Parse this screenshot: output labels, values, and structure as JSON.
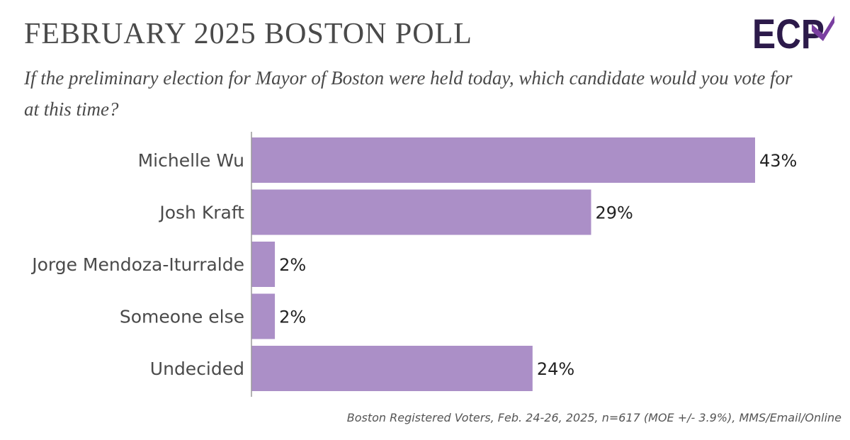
{
  "header": {
    "title": "FEBRUARY 2025 BOSTON POLL",
    "subtitle": "If the preliminary election for Mayor of Boston were held today, which candidate would you vote for at this time?",
    "logo_text": "ECP"
  },
  "chart_data": {
    "type": "bar",
    "orientation": "horizontal",
    "categories": [
      "Michelle Wu",
      "Josh Kraft",
      "Jorge Mendoza-Iturralde",
      "Someone else",
      "Undecided"
    ],
    "values": [
      43,
      29,
      2,
      2,
      24
    ],
    "value_labels": [
      "43%",
      "29%",
      "2%",
      "2%",
      "24%"
    ],
    "unit": "%",
    "xlim": [
      0,
      43
    ],
    "grid": false,
    "bar_color": "#ab8fc7"
  },
  "footer": {
    "source": "Boston Registered Voters, Feb. 24-26, 2025, n=617 (MOE +/- 3.9%), MMS/Email/Online"
  },
  "colors": {
    "logo_dark": "#2c1a4a",
    "logo_accent": "#7a3fa0",
    "text": "#4a4a4a"
  }
}
